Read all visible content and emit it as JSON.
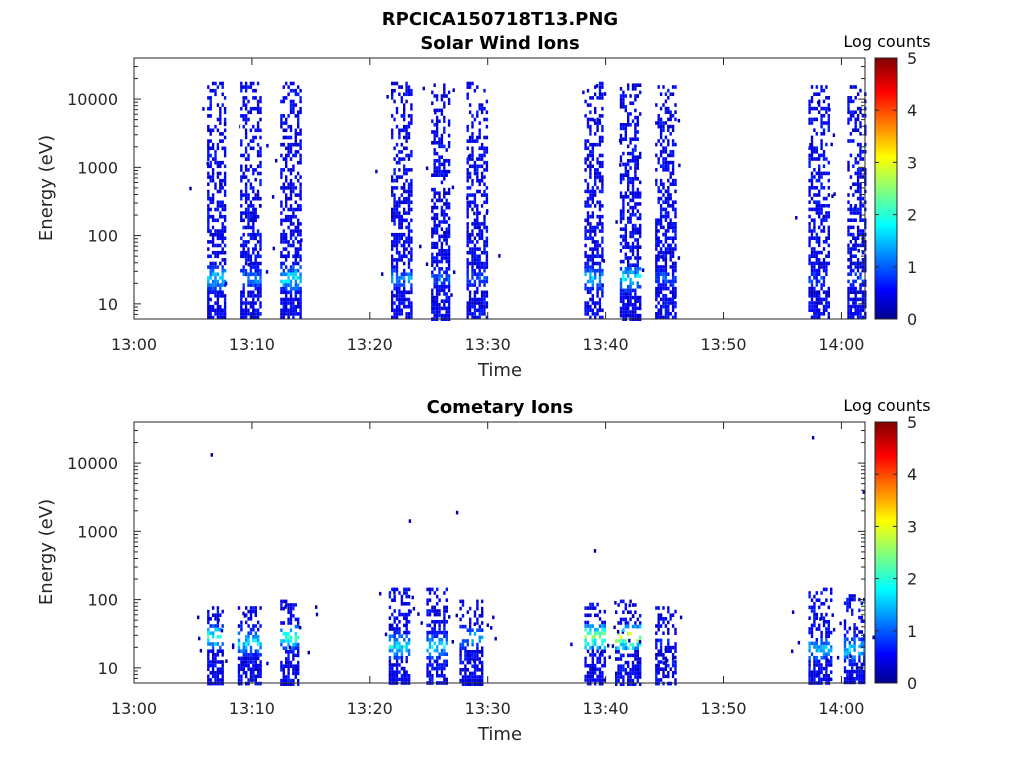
{
  "figure_title": "RPCICA150718T13.PNG",
  "chart_data": [
    {
      "type": "heatmap",
      "title": "Solar Wind Ions",
      "xlabel": "Time",
      "ylabel": "Energy (eV)",
      "yscale": "log",
      "ylim": [
        6,
        40000
      ],
      "xlim": [
        "13:00",
        "14:02"
      ],
      "x_ticks": [
        "13:00",
        "13:10",
        "13:20",
        "13:30",
        "13:40",
        "13:50",
        "14:00"
      ],
      "y_ticks": [
        "10",
        "100",
        "1000",
        "10000"
      ],
      "colorbar": {
        "label": "Log counts",
        "min": 0,
        "max": 5,
        "ticks": [
          "0",
          "1",
          "2",
          "3",
          "4",
          "5"
        ],
        "colormap": "jet"
      },
      "grid": false,
      "bursts": [
        {
          "start": "13:06.2",
          "end": "13:07.8",
          "e_max": 18000,
          "peak_log": 2.0,
          "peak_energy": 25
        },
        {
          "start": "13:09.0",
          "end": "13:10.8",
          "e_max": 18000,
          "peak_log": 1.6,
          "peak_energy": 25
        },
        {
          "start": "13:12.4",
          "end": "13:14.2",
          "e_max": 18000,
          "peak_log": 2.3,
          "peak_energy": 25
        },
        {
          "start": "13:21.8",
          "end": "13:23.6",
          "e_max": 18000,
          "peak_log": 1.6,
          "peak_energy": 25
        },
        {
          "start": "13:25.2",
          "end": "13:26.8",
          "e_max": 17000,
          "peak_log": 1.3,
          "peak_energy": 25
        },
        {
          "start": "13:28.2",
          "end": "13:30.0",
          "e_max": 18000,
          "peak_log": 1.3,
          "peak_energy": 25
        },
        {
          "start": "13:38.2",
          "end": "13:39.8",
          "e_max": 18000,
          "peak_log": 2.0,
          "peak_energy": 25
        },
        {
          "start": "13:41.2",
          "end": "13:43.0",
          "e_max": 17000,
          "peak_log": 2.2,
          "peak_energy": 25
        },
        {
          "start": "13:44.2",
          "end": "13:46.0",
          "e_max": 16000,
          "peak_log": 1.3,
          "peak_energy": 25
        },
        {
          "start": "13:57.2",
          "end": "13:59.0",
          "e_max": 16000,
          "peak_log": 1.2,
          "peak_energy": 25
        },
        {
          "start": "14:00.5",
          "end": "14:02.0",
          "e_max": 16000,
          "peak_log": 1.2,
          "peak_energy": 25
        }
      ]
    },
    {
      "type": "heatmap",
      "title": "Cometary Ions",
      "xlabel": "Time",
      "ylabel": "Energy (eV)",
      "yscale": "log",
      "ylim": [
        6,
        40000
      ],
      "xlim": [
        "13:00",
        "14:02"
      ],
      "x_ticks": [
        "13:00",
        "13:10",
        "13:20",
        "13:30",
        "13:40",
        "13:50",
        "14:00"
      ],
      "y_ticks": [
        "10",
        "100",
        "1000",
        "10000"
      ],
      "colorbar": {
        "label": "Log counts",
        "min": 0,
        "max": 5,
        "ticks": [
          "0",
          "1",
          "2",
          "3",
          "4",
          "5"
        ],
        "colormap": "jet"
      },
      "grid": false,
      "bursts": [
        {
          "start": "13:06.2",
          "end": "13:07.6",
          "e_max": 80,
          "peak_log": 2.6,
          "peak_energy": 30
        },
        {
          "start": "13:08.8",
          "end": "13:10.8",
          "e_max": 80,
          "peak_log": 2.2,
          "peak_energy": 25
        },
        {
          "start": "13:12.4",
          "end": "13:14.0",
          "e_max": 100,
          "peak_log": 2.5,
          "peak_energy": 30
        },
        {
          "start": "13:21.6",
          "end": "13:23.4",
          "e_max": 150,
          "peak_log": 2.3,
          "peak_energy": 22
        },
        {
          "start": "13:24.8",
          "end": "13:26.6",
          "e_max": 150,
          "peak_log": 2.1,
          "peak_energy": 22
        },
        {
          "start": "13:27.6",
          "end": "13:29.6",
          "e_max": 100,
          "peak_log": 1.8,
          "peak_energy": 30
        },
        {
          "start": "13:38.2",
          "end": "13:40.0",
          "e_max": 90,
          "peak_log": 3.3,
          "peak_energy": 30
        },
        {
          "start": "13:40.8",
          "end": "13:43.0",
          "e_max": 100,
          "peak_log": 3.6,
          "peak_energy": 30
        },
        {
          "start": "13:44.2",
          "end": "13:46.0",
          "e_max": 80,
          "peak_log": 1.0,
          "peak_energy": 25
        },
        {
          "start": "13:57.2",
          "end": "13:59.2",
          "e_max": 150,
          "peak_log": 1.9,
          "peak_energy": 20
        },
        {
          "start": "14:00.2",
          "end": "14:02.0",
          "e_max": 120,
          "peak_log": 2.1,
          "peak_energy": 20
        }
      ],
      "isolated_points": [
        {
          "time": "13:06.5",
          "energy": 14000
        },
        {
          "time": "13:23.3",
          "energy": 1500
        },
        {
          "time": "13:27.3",
          "energy": 2000
        },
        {
          "time": "13:39.0",
          "energy": 550
        },
        {
          "time": "13:57.5",
          "energy": 25000
        },
        {
          "time": "14:01.8",
          "energy": 4000
        }
      ]
    }
  ]
}
